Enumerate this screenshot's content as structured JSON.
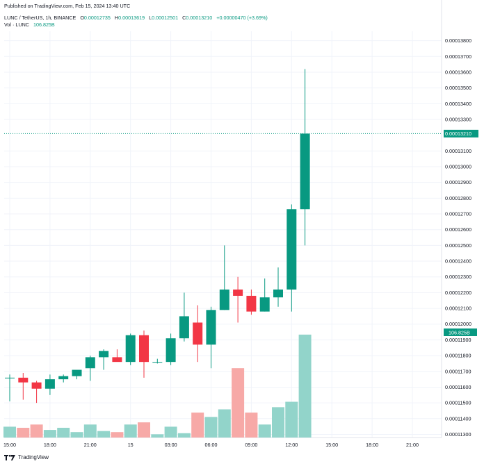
{
  "header": {
    "published": "Published on TradingView.com, Feb 15, 2024 13:40 UTC",
    "symbol": "LUNC / TetherUS, 1h, BINANCE",
    "open_label": "O",
    "open_value": "0.00012735",
    "high_label": "H",
    "high_value": "0.00013619",
    "low_label": "L",
    "low_value": "0.00012501",
    "close_label": "C",
    "close_value": "0.00013210",
    "change": "+0.00000470 (+3.69%)",
    "volume_label": "Vol · LUNC",
    "volume_value": "106.825B"
  },
  "footer": {
    "brand": "TradingView",
    "logo_icon": "tradingview-logo-icon"
  },
  "colors": {
    "up": "#089981",
    "down": "#f23645",
    "volume_up": "#92d4ca",
    "volume_down": "#f7a9a7",
    "grid": "#f0f3fa",
    "axis_text": "#131722",
    "current_price_label": "#089981"
  },
  "chart_data": {
    "type": "candlestick",
    "title": "LUNC / TetherUS, 1h, BINANCE",
    "x_tick_labels": [
      "15:00",
      "18:00",
      "21:00",
      "15",
      "03:00",
      "06:00",
      "09:00",
      "12:00",
      "15:00",
      "18:00",
      "21:00"
    ],
    "x_tick_hours": [
      0,
      3,
      6,
      9,
      12,
      15,
      18,
      21,
      24,
      27,
      30
    ],
    "y_tick_labels": [
      "0.00013800",
      "0.00013700",
      "0.00013600",
      "0.00013500",
      "0.00013400",
      "0.00013300",
      "0.00013100",
      "0.00013000",
      "0.00012900",
      "0.00012800",
      "0.00012700",
      "0.00012600",
      "0.00012500",
      "0.00012400",
      "0.00012300",
      "0.00012200",
      "0.00012100",
      "0.00012000",
      "0.00011900",
      "0.00011800",
      "0.00011700",
      "0.00011600",
      "0.00011500",
      "0.00011400",
      "0.00011300"
    ],
    "y_tick_values": [
      0.000138,
      0.000137,
      0.000136,
      0.000135,
      0.000134,
      0.000133,
      0.000131,
      0.00013,
      0.000129,
      0.000128,
      0.000127,
      0.000126,
      0.000125,
      0.000124,
      0.000123,
      0.000122,
      0.000121,
      0.00012,
      0.000119,
      0.000118,
      0.000117,
      0.000116,
      0.000115,
      0.000114,
      0.000113
    ],
    "ylim": [
      0.0001128,
      0.0001386
    ],
    "current_price": 0.0001321,
    "current_price_label": "0.00013210",
    "volume_label": "106.825B",
    "grid": true,
    "x": [
      0,
      1,
      2,
      3,
      4,
      5,
      6,
      7,
      8,
      9,
      10,
      11,
      12,
      13,
      14,
      15,
      16,
      17,
      18,
      19,
      20,
      21,
      22
    ],
    "open": [
      0.0001166,
      0.0001166,
      0.0001163,
      0.0001159,
      0.0001165,
      0.0001167,
      0.0001172,
      0.0001179,
      0.0001179,
      0.0001176,
      0.0001193,
      0.0001176,
      0.0001176,
      0.0001191,
      0.0001201,
      0.0001187,
      0.0001209,
      0.0001222,
      0.0001218,
      0.0001208,
      0.0001217,
      0.0001222,
      0.0001273
    ],
    "high": [
      0.0001168,
      0.0001169,
      0.0001164,
      0.0001168,
      0.0001168,
      0.000117,
      0.000118,
      0.0001184,
      0.0001184,
      0.0001194,
      0.0001196,
      0.0001178,
      0.0001194,
      0.000122,
      0.0001212,
      0.0001211,
      0.000125,
      0.000123,
      0.0001222,
      0.0001229,
      0.0001236,
      0.0001276,
      0.0001362
    ],
    "low": [
      0.0001151,
      0.0001152,
      0.000115,
      0.0001155,
      0.0001163,
      0.0001165,
      0.0001164,
      0.0001171,
      0.0001178,
      0.0001174,
      0.0001166,
      0.0001175,
      0.0001174,
      0.0001189,
      0.0001176,
      0.0001172,
      0.0001209,
      0.0001201,
      0.0001206,
      0.0001208,
      0.0001211,
      0.0001208,
      0.000125
    ],
    "close": [
      0.0001166,
      0.0001163,
      0.0001159,
      0.0001165,
      0.0001167,
      0.0001171,
      0.0001179,
      0.0001183,
      0.0001176,
      0.0001193,
      0.0001176,
      0.0001176,
      0.0001191,
      0.0001205,
      0.0001187,
      0.0001209,
      0.0001222,
      0.0001218,
      0.0001208,
      0.0001217,
      0.0001222,
      0.0001273,
      0.0001321
    ],
    "volume": [
      10,
      9,
      12,
      7,
      9,
      5,
      12,
      6,
      5,
      12,
      14,
      3,
      10,
      4,
      23,
      19,
      26,
      64,
      23,
      12,
      28,
      33,
      95
    ],
    "volume_max": 100
  }
}
